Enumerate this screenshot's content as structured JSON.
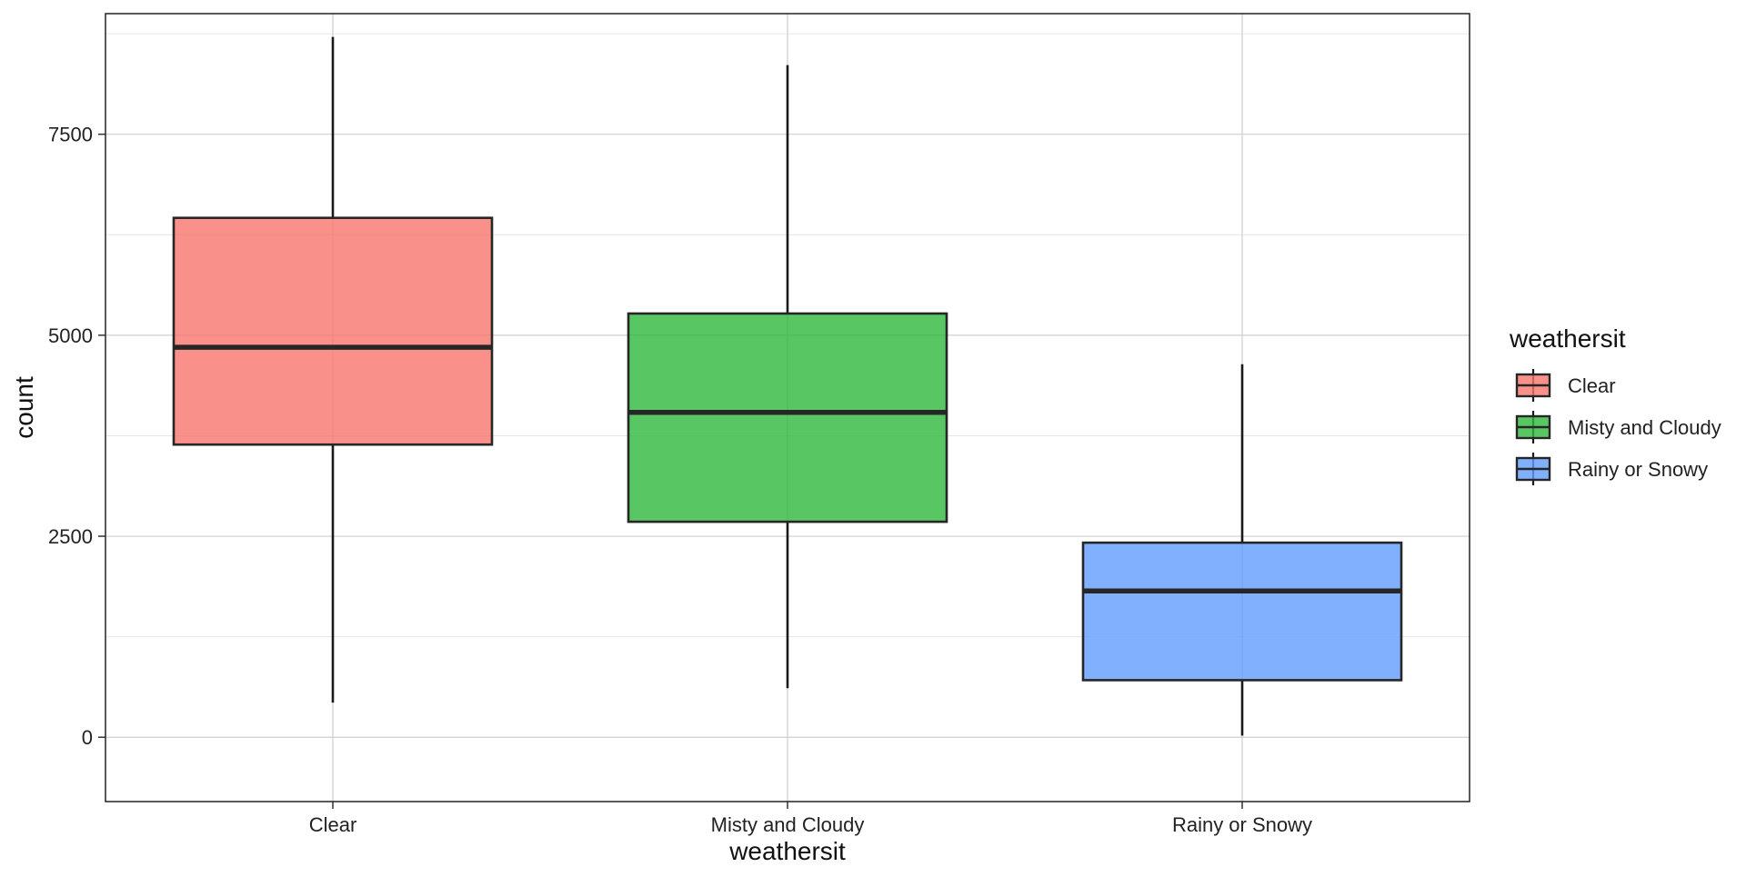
{
  "chart_data": {
    "type": "box",
    "xlabel": "weathersit",
    "ylabel": "count",
    "categories": [
      "Clear",
      "Misty and Cloudy",
      "Rainy or Snowy"
    ],
    "ylim": [
      -800,
      9000
    ],
    "yticks": [
      0,
      2500,
      5000,
      7500
    ],
    "y_tick_labels": [
      "0",
      "2500",
      "5000",
      "7500"
    ],
    "boxes": [
      {
        "category": "Clear",
        "min": 430,
        "q1": 3640,
        "median": 4850,
        "q3": 6460,
        "max": 8710
      },
      {
        "category": "Misty and Cloudy",
        "min": 610,
        "q1": 2680,
        "median": 4040,
        "q3": 5270,
        "max": 8360
      },
      {
        "category": "Rainy or Snowy",
        "min": 20,
        "q1": 710,
        "median": 1820,
        "q3": 2420,
        "max": 4640
      }
    ],
    "colors": {
      "Clear": "#F8766D",
      "Misty and Cloudy": "#2EB83C",
      "Rainy or Snowy": "#619CFF"
    },
    "grid": true,
    "legend": {
      "title": "weathersit",
      "position": "right",
      "entries": [
        "Clear",
        "Misty and Cloudy",
        "Rainy or Snowy"
      ]
    }
  }
}
